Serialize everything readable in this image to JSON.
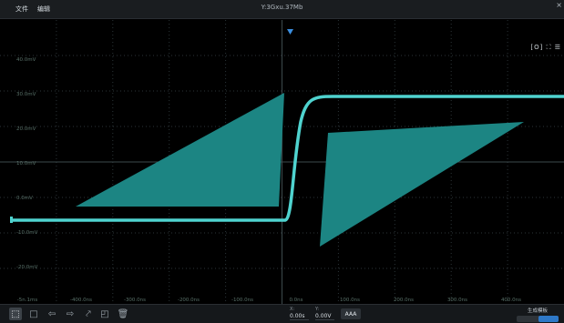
{
  "menu": {
    "file": "文件",
    "edit": "编辑"
  },
  "title": "Y:3Gxu.37Mb",
  "window": {
    "close_glyph": "×"
  },
  "scope_icons": "[O] ⛶ ☰",
  "x_ticks": [
    "-5n.1ms",
    "-400.0ns",
    "-300.0ns",
    "-200.0ns",
    "-100.0ns",
    "0.0ns",
    "100.0ns",
    "200.0ns",
    "300.0ns",
    "400.0ns"
  ],
  "y_ticks": [
    "40.0mV",
    "30.0mV",
    "20.0mV",
    "10.0mV",
    "0.0mV",
    "-10.0mV",
    "-20.0mV"
  ],
  "colors": {
    "background": "#000000",
    "trace": "#4fd3cf",
    "mask": "#1c8583",
    "grid": "#2b3437",
    "trigger": "#3b8fe0"
  },
  "toolbar": {
    "icons": [
      "select-tool-icon",
      "rectangle-icon",
      "undo-icon",
      "redo-icon",
      "magic-wand-icon",
      "crop-icon",
      "trash-icon"
    ]
  },
  "readout": {
    "x_label": "X:",
    "x_value": "0.00s",
    "y_label": "Y:",
    "y_value": "0.00V"
  },
  "auto_button": "AAA",
  "toggle": {
    "label": "生成模板"
  }
}
